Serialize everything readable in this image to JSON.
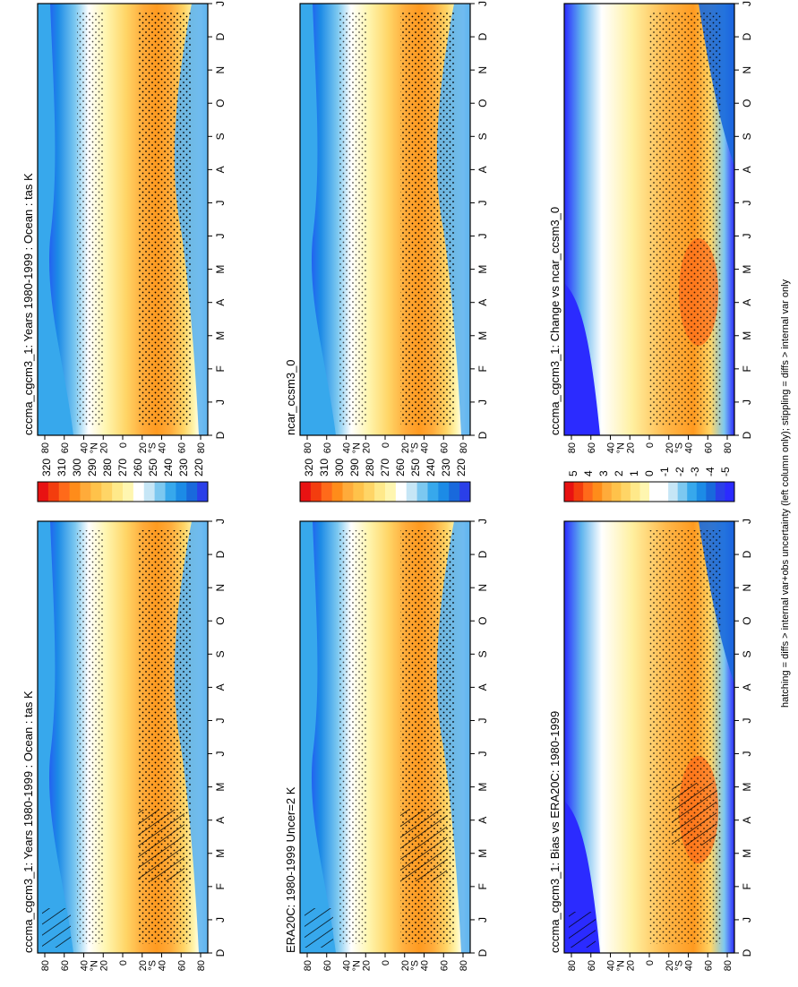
{
  "figure": {
    "footer_note": "hatching = diffs > internal var+obs uncertainty (left column only); stippling = diffs > internal var only"
  },
  "chart_data": [
    {
      "id": "p1",
      "type": "heatmap",
      "title": "cccma_cgcm3_1: Years 1980-1999 : Ocean : tas K",
      "x_ticks": [
        "D",
        "J",
        "F",
        "M",
        "A",
        "M",
        "J",
        "J",
        "A",
        "S",
        "O",
        "N",
        "D",
        "J"
      ],
      "y_ticks": [
        "80",
        "60",
        "40",
        "20",
        "0",
        "20",
        "40",
        "60",
        "80"
      ],
      "y_hemi_labels": [
        "°N",
        "°S"
      ],
      "kind": "abs",
      "hatching": true,
      "colorbar": {
        "labels": [
          "320",
          "310",
          "300",
          "290",
          "280",
          "270",
          "260",
          "250",
          "240",
          "230",
          "220"
        ]
      }
    },
    {
      "id": "p2",
      "type": "heatmap",
      "title": "cccma_cgcm3_1: Years 1980-1999 : Ocean : tas K",
      "x_ticks": [
        "D",
        "J",
        "F",
        "M",
        "A",
        "M",
        "J",
        "J",
        "A",
        "S",
        "O",
        "N",
        "D",
        "J"
      ],
      "y_ticks": [
        "80",
        "60",
        "40",
        "20",
        "0",
        "20",
        "40",
        "60",
        "80"
      ],
      "y_hemi_labels": [
        "°N",
        "°S"
      ],
      "kind": "abs",
      "hatching": false,
      "colorbar": {
        "labels": [
          "320",
          "310",
          "300",
          "290",
          "280",
          "270",
          "260",
          "250",
          "240",
          "230",
          "220"
        ]
      }
    },
    {
      "id": "p3",
      "type": "heatmap",
      "title": "ERA20C: 1980-1999 Uncer=2 K",
      "x_ticks": [
        "D",
        "J",
        "F",
        "M",
        "A",
        "M",
        "J",
        "J",
        "A",
        "S",
        "O",
        "N",
        "D",
        "J"
      ],
      "y_ticks": [
        "80",
        "60",
        "40",
        "20",
        "0",
        "20",
        "40",
        "60",
        "80"
      ],
      "y_hemi_labels": [
        "°N",
        "°S"
      ],
      "kind": "abs",
      "hatching": true,
      "colorbar": {
        "labels": [
          "320",
          "310",
          "300",
          "290",
          "280",
          "270",
          "260",
          "250",
          "240",
          "230",
          "220"
        ]
      }
    },
    {
      "id": "p4",
      "type": "heatmap",
      "title": "ncar_ccsm3_0",
      "x_ticks": [
        "D",
        "J",
        "F",
        "M",
        "A",
        "M",
        "J",
        "J",
        "A",
        "S",
        "O",
        "N",
        "D",
        "J"
      ],
      "y_ticks": [
        "80",
        "60",
        "40",
        "20",
        "0",
        "20",
        "40",
        "60",
        "80"
      ],
      "y_hemi_labels": [
        "°N",
        "°S"
      ],
      "kind": "abs",
      "hatching": false,
      "colorbar": {
        "labels": [
          "320",
          "310",
          "300",
          "290",
          "280",
          "270",
          "260",
          "250",
          "240",
          "230",
          "220"
        ]
      }
    },
    {
      "id": "p5",
      "type": "heatmap",
      "title": "cccma_cgcm3_1: Bias vs ERA20C: 1980-1999",
      "x_ticks": [
        "D",
        "J",
        "F",
        "M",
        "A",
        "M",
        "J",
        "J",
        "A",
        "S",
        "O",
        "N",
        "D",
        "J"
      ],
      "y_ticks": [
        "80",
        "60",
        "40",
        "20",
        "0",
        "20",
        "40",
        "60",
        "80"
      ],
      "y_hemi_labels": [
        "°N",
        "°S"
      ],
      "kind": "diff",
      "hatching": true,
      "colorbar": {
        "labels": [
          "5",
          "4",
          "3",
          "2",
          "1",
          "0",
          "-1",
          "-2",
          "-3",
          "-4",
          "-5"
        ]
      }
    },
    {
      "id": "p6",
      "type": "heatmap",
      "title": "cccma_cgcm3_1: Change vs ncar_ccsm3_0",
      "x_ticks": [
        "D",
        "J",
        "F",
        "M",
        "A",
        "M",
        "J",
        "J",
        "A",
        "S",
        "O",
        "N",
        "D",
        "J"
      ],
      "y_ticks": [
        "80",
        "60",
        "40",
        "20",
        "0",
        "20",
        "40",
        "60",
        "80"
      ],
      "y_hemi_labels": [
        "°N",
        "°S"
      ],
      "kind": "diff",
      "hatching": false,
      "colorbar": {
        "labels": [
          "5",
          "4",
          "3",
          "2",
          "1",
          "0",
          "-1",
          "-2",
          "-3",
          "-4",
          "-5"
        ]
      }
    }
  ]
}
